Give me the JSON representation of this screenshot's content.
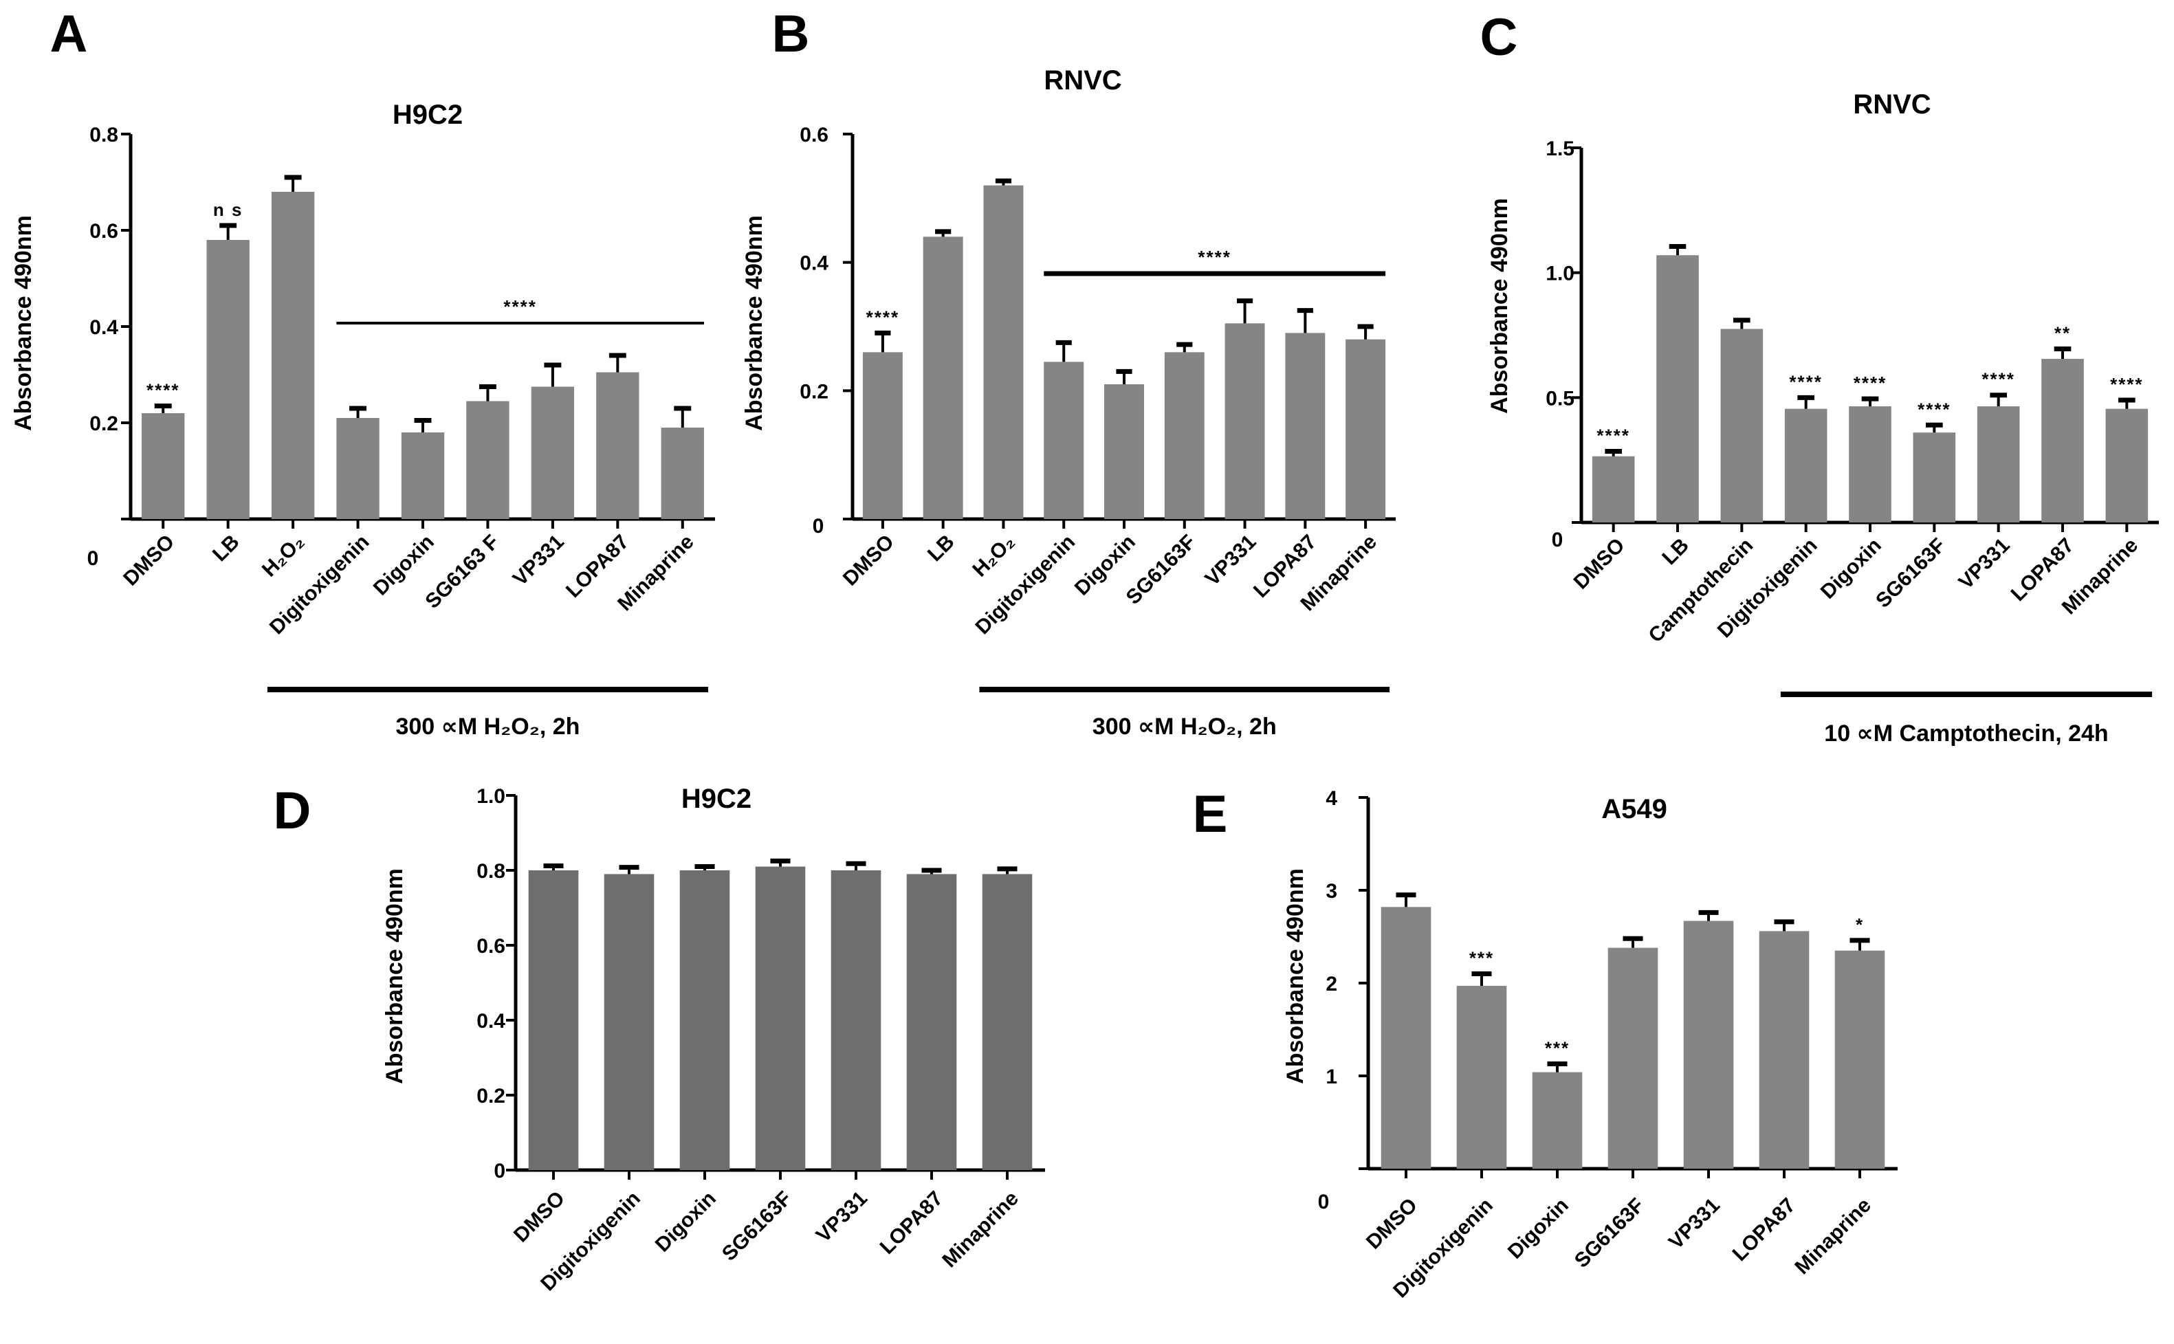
{
  "chart_data": [
    {
      "panel": "A",
      "type": "bar",
      "title": "H9C2",
      "xlabel": "",
      "ylabel": "Absorbance 490nm",
      "ylim": [
        0,
        0.8
      ],
      "yticks": [
        "0",
        "0.2",
        "0.4",
        "0.6",
        "0.8"
      ],
      "categories": [
        "DMSO",
        "LB",
        "H₂O₂",
        "Digitoxigenin",
        "Digoxin",
        "SG6163 F",
        "VP331",
        "LOPA87",
        "Minaprine"
      ],
      "values": [
        0.22,
        0.58,
        0.68,
        0.21,
        0.18,
        0.245,
        0.275,
        0.305,
        0.19
      ],
      "errors": [
        0.015,
        0.03,
        0.03,
        0.02,
        0.025,
        0.03,
        0.045,
        0.035,
        0.04
      ],
      "bar_color": "#858585",
      "significance": [
        "****",
        "n s",
        "",
        "",
        "",
        "",
        "",
        "",
        ""
      ],
      "group_line": {
        "label": "****",
        "from": 3,
        "to": 8
      },
      "bracket": {
        "label": "300 ∝M H₂O₂, 2h",
        "from": 2,
        "to": 8
      }
    },
    {
      "panel": "B",
      "type": "bar",
      "title": "RNVC",
      "xlabel": "",
      "ylabel": "Absorbance 490nm",
      "ylim": [
        0,
        0.6
      ],
      "yticks": [
        "0",
        "0.2",
        "0.4",
        "0.6"
      ],
      "categories": [
        "DMSO",
        "LB",
        "H₂O₂",
        "Digitoxigenin",
        "Digoxin",
        "SG6163F",
        "VP331",
        "LOPA87",
        "Minaprine"
      ],
      "values": [
        0.26,
        0.44,
        0.52,
        0.245,
        0.21,
        0.26,
        0.305,
        0.29,
        0.28
      ],
      "errors": [
        0.03,
        0.008,
        0.007,
        0.03,
        0.02,
        0.012,
        0.035,
        0.035,
        0.02
      ],
      "bar_color": "#858585",
      "significance": [
        "****",
        "",
        "",
        "",
        "",
        "",
        "",
        "",
        ""
      ],
      "group_line": {
        "label": "****",
        "from": 3,
        "to": 8
      },
      "bracket": {
        "label": "300 ∝M H₂O₂, 2h",
        "from": 2,
        "to": 8
      }
    },
    {
      "panel": "C",
      "type": "bar",
      "title": "RNVC",
      "xlabel": "",
      "ylabel": "Absorbance 490nm",
      "ylim": [
        0,
        1.5
      ],
      "yticks": [
        "0",
        "0.5",
        "1.0",
        "1.5"
      ],
      "categories": [
        "DMSO",
        "LB",
        "Camptothecin",
        "Digitoxigenin",
        "Digoxin",
        "SG6163F",
        "VP331",
        "LOPA87",
        "Minaprine"
      ],
      "values": [
        0.265,
        1.07,
        0.775,
        0.455,
        0.465,
        0.36,
        0.465,
        0.655,
        0.455
      ],
      "errors": [
        0.02,
        0.035,
        0.035,
        0.045,
        0.03,
        0.03,
        0.045,
        0.04,
        0.035
      ],
      "bar_color": "#858585",
      "significance": [
        "****",
        "",
        "",
        "****",
        "****",
        "****",
        "****",
        "**",
        "****"
      ],
      "bracket": {
        "label": "10 ∝M Camptothecin, 24h",
        "from": 3,
        "to": 8
      }
    },
    {
      "panel": "D",
      "type": "bar",
      "title": "H9C2",
      "xlabel": "",
      "ylabel": "Absorbance 490nm",
      "ylim": [
        0,
        1.0
      ],
      "yticks": [
        "0",
        "0.2",
        "0.4",
        "0.6",
        "0.8",
        "1.0"
      ],
      "categories": [
        "DMSO",
        "Digitoxigenin",
        "Digoxin",
        "SG6163F",
        "VP331",
        "LOPA87",
        "Minaprine"
      ],
      "values": [
        0.8,
        0.79,
        0.8,
        0.81,
        0.8,
        0.79,
        0.79
      ],
      "errors": [
        0.012,
        0.018,
        0.01,
        0.015,
        0.018,
        0.01,
        0.014
      ],
      "bar_color": "#6e6e6e",
      "significance": [
        "",
        "",
        "",
        "",
        "",
        "",
        ""
      ]
    },
    {
      "panel": "E",
      "type": "bar",
      "title": "A549",
      "xlabel": "",
      "ylabel": "Absorbance 490nm",
      "ylim": [
        0,
        4
      ],
      "yticks": [
        "0",
        "1",
        "2",
        "3",
        "4"
      ],
      "categories": [
        "DMSO",
        "Digitoxigenin",
        "Digoxin",
        "SG6163F",
        "VP331",
        "LOPA87",
        "Minaprine"
      ],
      "values": [
        2.82,
        1.97,
        1.04,
        2.38,
        2.67,
        2.56,
        2.35
      ],
      "errors": [
        0.13,
        0.13,
        0.09,
        0.1,
        0.09,
        0.1,
        0.11
      ],
      "bar_color": "#858585",
      "significance": [
        "",
        "***",
        "***",
        "",
        "",
        "",
        "*"
      ]
    }
  ]
}
